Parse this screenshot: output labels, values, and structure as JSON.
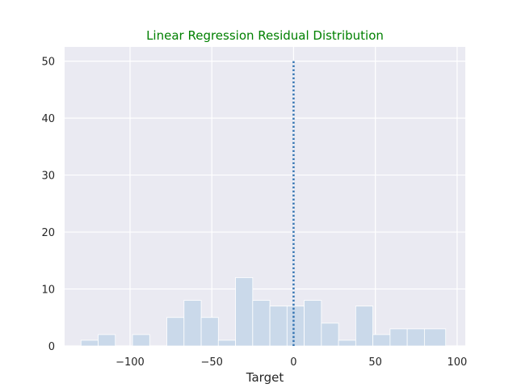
{
  "chart_data": {
    "type": "bar",
    "title": "Linear Regression Residual Distribution",
    "xlabel": "Target",
    "ylabel": "",
    "xlim": [
      -140,
      105
    ],
    "ylim": [
      0,
      52.5
    ],
    "grid": true,
    "x_ticks": [
      -100,
      -50,
      0,
      50,
      100
    ],
    "x_tick_labels": [
      "−100",
      "−50",
      "0",
      "50",
      "100"
    ],
    "y_ticks": [
      0,
      10,
      20,
      30,
      40,
      50
    ],
    "y_tick_labels": [
      "0",
      "10",
      "20",
      "30",
      "40",
      "50"
    ],
    "bin_edges": [
      -130,
      -119.5,
      -109,
      -98.5,
      -88,
      -77.5,
      -67,
      -56.5,
      -46,
      -35.5,
      -25,
      -14.5,
      -4,
      6.5,
      17,
      27.5,
      38,
      48.5,
      59,
      69.5,
      80,
      93
    ],
    "counts": [
      1,
      2,
      0,
      2,
      0,
      5,
      8,
      5,
      1,
      12,
      8,
      7,
      7,
      8,
      4,
      1,
      7,
      2,
      3,
      3,
      3
    ],
    "bar_color": "#cad9ea",
    "reference_line": {
      "x": 0,
      "y_range": [
        0,
        50
      ],
      "color": "#3a78b4",
      "style": "dotted"
    },
    "colors": {
      "plot_background": "#eaeaf2",
      "grid": "#ffffff",
      "title": "#008000"
    }
  }
}
